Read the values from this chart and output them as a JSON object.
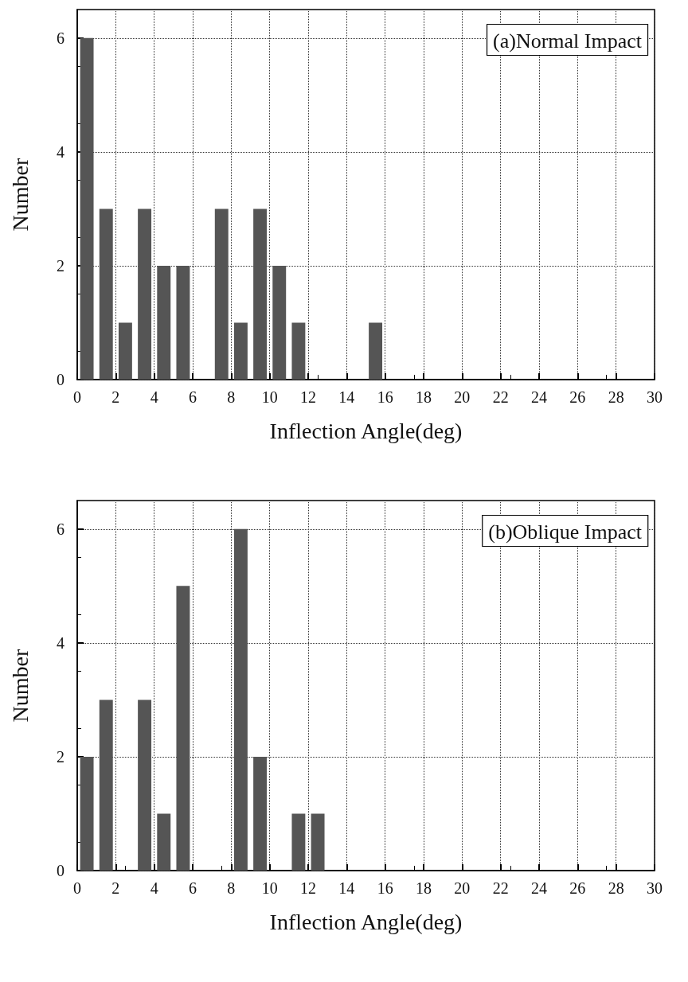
{
  "chart_data": [
    {
      "type": "histogram",
      "title": "(a)Normal Impact",
      "xlabel": "Inflection Angle(deg)",
      "ylabel": "Number",
      "color": "#555555",
      "bins": [
        0,
        1,
        2,
        3,
        4,
        5,
        6,
        7,
        8,
        9,
        10,
        11,
        12,
        13,
        14,
        15,
        16,
        17,
        18,
        19,
        20,
        21,
        22,
        23,
        24,
        25,
        26,
        27,
        28,
        29,
        30
      ],
      "values": [
        6,
        3,
        1,
        3,
        2,
        2,
        0,
        3,
        1,
        3,
        2,
        1,
        0,
        0,
        0,
        1,
        0,
        0,
        0,
        0,
        0,
        0,
        0,
        0,
        0,
        0,
        0,
        0,
        0,
        0
      ],
      "xlim": [
        0,
        30
      ],
      "xticks": [
        0,
        2,
        4,
        6,
        8,
        10,
        12,
        14,
        16,
        18,
        20,
        22,
        24,
        26,
        28,
        30
      ],
      "ylim": [
        0,
        6.5
      ],
      "yticks": [
        0,
        2,
        4,
        6
      ],
      "grid": true
    },
    {
      "type": "histogram",
      "title": "(b)Oblique Impact",
      "xlabel": "Inflection Angle(deg)",
      "ylabel": "Number",
      "color": "#555555",
      "bins": [
        0,
        1,
        2,
        3,
        4,
        5,
        6,
        7,
        8,
        9,
        10,
        11,
        12,
        13,
        14,
        15,
        16,
        17,
        18,
        19,
        20,
        21,
        22,
        23,
        24,
        25,
        26,
        27,
        28,
        29,
        30
      ],
      "values": [
        2,
        3,
        0,
        3,
        1,
        5,
        0,
        0,
        6,
        2,
        0,
        1,
        1,
        0,
        0,
        0,
        0,
        0,
        0,
        0,
        0,
        0,
        0,
        0,
        0,
        0,
        0,
        0,
        0,
        0
      ],
      "xlim": [
        0,
        30
      ],
      "xticks": [
        0,
        2,
        4,
        6,
        8,
        10,
        12,
        14,
        16,
        18,
        20,
        22,
        24,
        26,
        28,
        30
      ],
      "ylim": [
        0,
        6.5
      ],
      "yticks": [
        0,
        2,
        4,
        6
      ],
      "grid": true
    }
  ]
}
